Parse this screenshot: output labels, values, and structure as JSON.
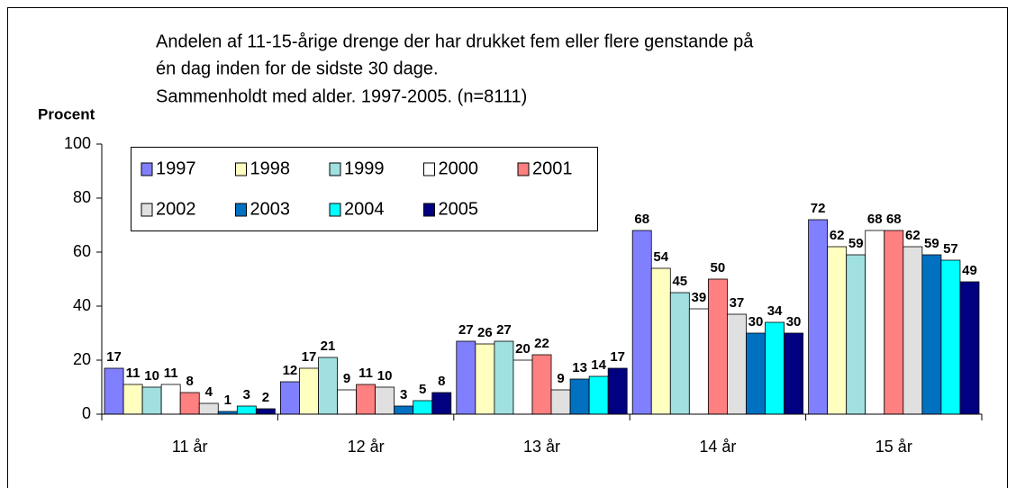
{
  "chart_data": {
    "type": "bar",
    "title": [
      "Andelen af 11-15-årige drenge der har drukket fem eller flere genstande på",
      "én dag inden for de sidste 30 dage.",
      "Sammenholdt med alder. 1997-2005. (n=8111)"
    ],
    "ylabel": "Procent",
    "categories": [
      "11 år",
      "12 år",
      "13 år",
      "14 år",
      "15 år"
    ],
    "series": [
      {
        "name": "1997",
        "color": "#8080ff",
        "values": [
          17,
          12,
          27,
          68,
          72
        ]
      },
      {
        "name": "1998",
        "color": "#ffffc0",
        "values": [
          11,
          17,
          26,
          54,
          62
        ]
      },
      {
        "name": "1999",
        "color": "#a0e0e0",
        "values": [
          10,
          21,
          27,
          45,
          59
        ]
      },
      {
        "name": "2000",
        "color": "#ffffff",
        "values": [
          11,
          9,
          20,
          39,
          68
        ]
      },
      {
        "name": "2001",
        "color": "#ff8080",
        "values": [
          8,
          11,
          22,
          50,
          68
        ]
      },
      {
        "name": "2002",
        "color": "#e0e0e0",
        "values": [
          4,
          10,
          9,
          37,
          62
        ]
      },
      {
        "name": "2003",
        "color": "#0070c0",
        "values": [
          1,
          3,
          13,
          30,
          59
        ]
      },
      {
        "name": "2004",
        "color": "#00ffff",
        "values": [
          3,
          5,
          14,
          34,
          57
        ]
      },
      {
        "name": "2005",
        "color": "#000080",
        "values": [
          2,
          8,
          17,
          30,
          49
        ]
      }
    ],
    "ylim": [
      0,
      100
    ],
    "yticks": [
      0,
      20,
      40,
      60,
      80,
      100
    ]
  }
}
